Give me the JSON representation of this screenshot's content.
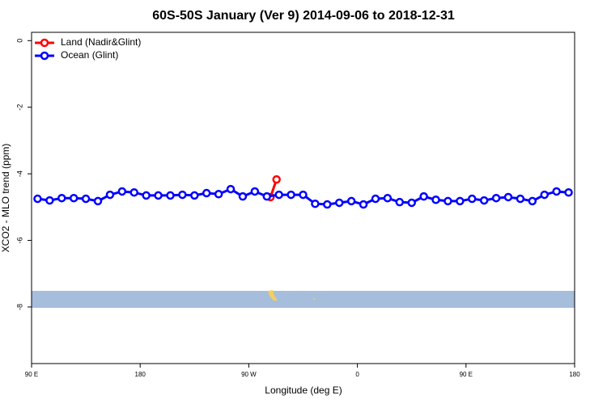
{
  "chart_data": {
    "type": "line",
    "title": "60S-50S January (Ver 9)   2014-09-06 to 2018-12-31",
    "x_label": "Longitude (deg E)",
    "y_label": "XCO2 - MLO trend (ppm)",
    "xlim": [
      90,
      540
    ],
    "ylim": [
      -9.7,
      0.25
    ],
    "xticks": [
      {
        "value": 90,
        "label": "90 E"
      },
      {
        "value": 180,
        "label": "180"
      },
      {
        "value": 270,
        "label": "90 W"
      },
      {
        "value": 360,
        "label": "0"
      },
      {
        "value": 450,
        "label": "90 E"
      },
      {
        "value": 540,
        "label": "180"
      }
    ],
    "yticks": [
      0,
      -2,
      -4,
      -6,
      -8
    ],
    "legend": "top-left",
    "series": [
      {
        "name": "Land (Nadir&Glint)",
        "color": "#ff0000",
        "x": [
          288,
          293
        ],
        "values": [
          -4.7,
          -4.17
        ]
      },
      {
        "name": "Ocean (Glint)",
        "color": "#0000ff",
        "x": [
          95,
          105,
          115,
          125,
          135,
          145,
          155,
          165,
          175,
          185,
          195,
          205,
          215,
          225,
          235,
          245,
          255,
          265,
          275,
          285,
          295,
          305,
          315,
          325,
          335,
          345,
          355,
          365,
          375,
          385,
          395,
          405,
          415,
          425,
          435,
          445,
          455,
          465,
          475,
          485,
          495,
          505,
          515,
          525,
          535
        ],
        "values": [
          -4.75,
          -4.8,
          -4.73,
          -4.73,
          -4.75,
          -4.82,
          -4.63,
          -4.53,
          -4.56,
          -4.65,
          -4.65,
          -4.65,
          -4.63,
          -4.65,
          -4.58,
          -4.61,
          -4.46,
          -4.68,
          -4.53,
          -4.68,
          -4.63,
          -4.63,
          -4.63,
          -4.9,
          -4.92,
          -4.87,
          -4.82,
          -4.92,
          -4.75,
          -4.73,
          -4.85,
          -4.87,
          -4.68,
          -4.78,
          -4.82,
          -4.82,
          -4.75,
          -4.8,
          -4.73,
          -4.7,
          -4.75,
          -4.82,
          -4.63,
          -4.53,
          -4.56
        ]
      }
    ]
  }
}
